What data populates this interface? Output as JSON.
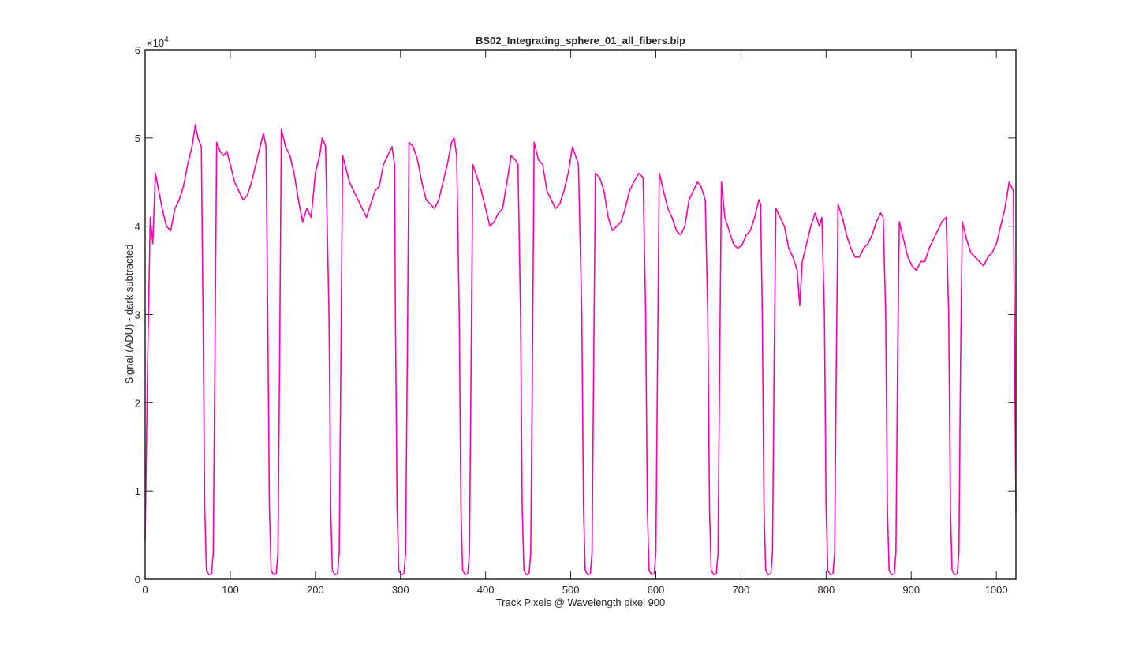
{
  "chart_data": {
    "type": "line",
    "title": "BS02_Integrating_sphere_01_all_fibers.bip",
    "x_label": "Track Pixels @ Wavelength pixel 900",
    "y_label": "Signal (ADU) - dark subtracted",
    "y_exponent_base": "×10",
    "y_exponent_power": "4",
    "xlim": [
      0,
      1023
    ],
    "ylim": [
      0,
      60000
    ],
    "xticks": [
      0,
      100,
      200,
      300,
      400,
      500,
      600,
      700,
      800,
      900,
      1000
    ],
    "yticks": [
      0,
      {
        "value": 10000,
        "label": "1"
      },
      {
        "value": 20000,
        "label": "2"
      },
      {
        "value": 30000,
        "label": "3"
      },
      {
        "value": 40000,
        "label": "4"
      },
      {
        "value": 50000,
        "label": "5"
      },
      {
        "value": 60000,
        "label": "6"
      }
    ],
    "grid": false,
    "x": [
      0,
      3,
      6,
      9,
      12,
      16,
      20,
      25,
      30,
      35,
      40,
      45,
      50,
      55,
      59,
      62,
      66,
      68,
      70,
      72,
      75,
      78,
      80,
      82,
      84,
      88,
      92,
      96,
      100,
      105,
      110,
      115,
      120,
      125,
      130,
      135,
      139,
      142,
      144,
      146,
      148,
      151,
      154,
      156,
      158,
      160,
      165,
      170,
      175,
      180,
      185,
      190,
      195,
      200,
      205,
      208,
      212,
      216,
      218,
      220,
      223,
      226,
      228,
      230,
      232,
      236,
      240,
      245,
      250,
      255,
      260,
      265,
      270,
      275,
      280,
      285,
      290,
      293,
      294,
      296,
      298,
      301,
      304,
      306,
      308,
      310,
      315,
      320,
      325,
      330,
      335,
      340,
      345,
      350,
      355,
      360,
      363,
      366,
      369,
      371,
      373,
      376,
      379,
      381,
      383,
      385,
      390,
      395,
      400,
      405,
      410,
      415,
      420,
      425,
      430,
      435,
      438,
      441,
      443,
      445,
      448,
      451,
      453,
      455,
      457,
      462,
      467,
      472,
      477,
      482,
      487,
      492,
      497,
      502,
      509,
      513,
      515,
      517,
      520,
      523,
      525,
      527,
      529,
      534,
      539,
      544,
      549,
      554,
      559,
      564,
      569,
      574,
      580,
      585,
      588,
      590,
      592,
      595,
      598,
      600,
      602,
      604,
      609,
      614,
      619,
      624,
      629,
      634,
      639,
      644,
      649,
      653,
      658,
      661,
      663,
      665,
      668,
      671,
      673,
      675,
      677,
      681,
      686,
      691,
      696,
      701,
      706,
      711,
      716,
      721,
      723,
      725,
      727,
      729,
      732,
      735,
      737,
      739,
      741,
      746,
      751,
      756,
      761,
      766,
      769,
      772,
      777,
      782,
      787,
      792,
      795,
      798,
      800,
      802,
      805,
      808,
      810,
      812,
      814,
      819,
      824,
      829,
      834,
      839,
      844,
      849,
      854,
      859,
      864,
      867,
      870,
      872,
      874,
      877,
      880,
      882,
      884,
      886,
      891,
      896,
      901,
      906,
      911,
      916,
      921,
      926,
      931,
      936,
      941,
      944,
      946,
      948,
      951,
      954,
      956,
      958,
      960,
      965,
      970,
      975,
      980,
      985,
      990,
      995,
      1000,
      1005,
      1010,
      1015,
      1020,
      1023
    ],
    "series": [
      {
        "color": "#ff00aa",
        "values": [
          4500,
          25000,
          41000,
          38000,
          46000,
          44000,
          42000,
          40000,
          39500,
          42000,
          43000,
          44500,
          47000,
          49000,
          51500,
          50000,
          49000,
          30000,
          8000,
          1000,
          500,
          600,
          3000,
          25000,
          49500,
          48500,
          48000,
          48500,
          47000,
          45000,
          44000,
          43000,
          43500,
          45000,
          47000,
          49000,
          50500,
          49000,
          30000,
          8000,
          1000,
          500,
          600,
          3000,
          25000,
          51000,
          49000,
          48000,
          46000,
          43000,
          40500,
          42000,
          41000,
          46000,
          48000,
          50000,
          49000,
          30000,
          8000,
          1000,
          500,
          600,
          3000,
          25000,
          48000,
          46500,
          45000,
          44000,
          43000,
          42000,
          41000,
          42500,
          44000,
          44500,
          47000,
          48000,
          49000,
          47000,
          30000,
          8000,
          1000,
          500,
          600,
          3000,
          25000,
          49500,
          49000,
          47500,
          45000,
          43000,
          42500,
          42000,
          43000,
          45000,
          47000,
          49500,
          50000,
          48000,
          30000,
          8000,
          1000,
          500,
          600,
          3000,
          25000,
          47000,
          45500,
          44000,
          42000,
          40000,
          40500,
          41500,
          42000,
          45000,
          48000,
          47500,
          47000,
          30000,
          8000,
          1000,
          500,
          600,
          3000,
          25000,
          49500,
          47500,
          47000,
          44000,
          43000,
          42000,
          42500,
          44000,
          46000,
          49000,
          47000,
          30000,
          8000,
          1000,
          500,
          600,
          3000,
          25000,
          46000,
          45500,
          44000,
          41000,
          39500,
          40000,
          40500,
          42000,
          44000,
          45000,
          46000,
          45500,
          30000,
          8000,
          1000,
          500,
          600,
          3000,
          25000,
          46000,
          44000,
          42000,
          41000,
          39500,
          39000,
          40000,
          43000,
          44000,
          45000,
          44500,
          43000,
          30000,
          8000,
          1000,
          500,
          600,
          3000,
          25000,
          45000,
          41000,
          39500,
          38000,
          37500,
          37800,
          39000,
          39500,
          41000,
          43000,
          42500,
          30000,
          8000,
          1000,
          500,
          600,
          3000,
          25000,
          42000,
          41000,
          40000,
          37500,
          36500,
          35000,
          31000,
          36000,
          38000,
          40000,
          41500,
          40000,
          41000,
          30000,
          8000,
          1000,
          500,
          600,
          3000,
          25000,
          42500,
          41000,
          39000,
          37500,
          36500,
          36500,
          37500,
          38000,
          39000,
          40500,
          41500,
          41000,
          30000,
          8000,
          1000,
          500,
          600,
          3000,
          25000,
          40500,
          38500,
          36500,
          35500,
          35000,
          36000,
          36000,
          37500,
          38500,
          39500,
          40500,
          41000,
          30000,
          8000,
          1000,
          500,
          600,
          3000,
          25000,
          40500,
          38500,
          37000,
          36500,
          36000,
          35500,
          36500,
          37000,
          38000,
          40000,
          42000,
          45000,
          44000,
          7500
        ]
      }
    ]
  }
}
